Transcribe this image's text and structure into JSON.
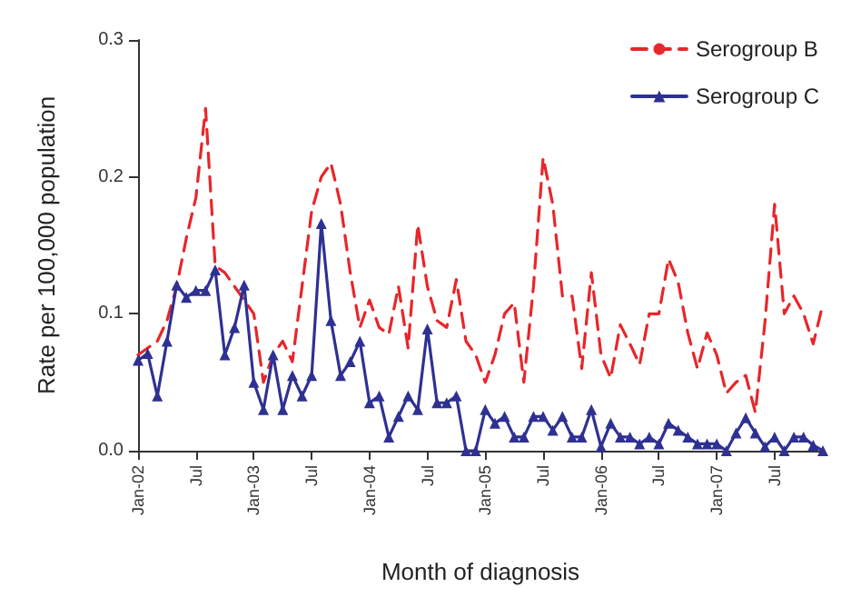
{
  "chart_data": {
    "type": "line",
    "xlabel": "Month of diagnosis",
    "ylabel": "Rate per 100,000 population",
    "categories": [
      "Jan-02",
      null,
      null,
      null,
      null,
      null,
      "Jul",
      null,
      null,
      null,
      null,
      null,
      "Jan-03",
      null,
      null,
      null,
      null,
      null,
      "Jul",
      null,
      null,
      null,
      null,
      null,
      "Jan-04",
      null,
      null,
      null,
      null,
      null,
      "Jul",
      null,
      null,
      null,
      null,
      null,
      "Jan-05",
      null,
      null,
      null,
      null,
      null,
      "Jul",
      null,
      null,
      null,
      null,
      null,
      "Jan-06",
      null,
      null,
      null,
      null,
      null,
      "Jul",
      null,
      null,
      null,
      null,
      null,
      "Jan-07",
      null,
      null,
      null,
      null,
      null,
      "Jul",
      null,
      null,
      null,
      null,
      null
    ],
    "series": [
      {
        "name": "Serogroup B",
        "color": "#e8262a",
        "marker": "none",
        "line_style": "dashed",
        "values": [
          0.07,
          0.075,
          0.08,
          0.095,
          0.12,
          0.155,
          0.185,
          0.25,
          0.135,
          0.13,
          0.12,
          0.11,
          0.1,
          0.05,
          0.07,
          0.08,
          0.065,
          0.12,
          0.175,
          0.2,
          0.21,
          0.18,
          0.13,
          0.09,
          0.11,
          0.09,
          0.085,
          0.12,
          0.075,
          0.165,
          0.12,
          0.095,
          0.09,
          0.125,
          0.08,
          0.07,
          0.05,
          0.07,
          0.1,
          0.108,
          0.05,
          0.12,
          0.214,
          0.18,
          0.113,
          0.113,
          0.06,
          0.13,
          0.07,
          0.053,
          0.092,
          0.078,
          0.063,
          0.1,
          0.1,
          0.14,
          0.123,
          0.086,
          0.06,
          0.086,
          0.07,
          0.042,
          0.05,
          0.055,
          0.028,
          0.094,
          0.18,
          0.1,
          0.113,
          0.1,
          0.078,
          0.107
        ]
      },
      {
        "name": "Serogroup C",
        "color": "#2e3192",
        "marker": "triangle",
        "line_style": "solid",
        "values": [
          0.066,
          0.071,
          0.04,
          0.08,
          0.121,
          0.112,
          0.117,
          0.117,
          0.132,
          0.07,
          0.09,
          0.121,
          0.05,
          0.03,
          0.07,
          0.03,
          0.055,
          0.04,
          0.055,
          0.166,
          0.095,
          0.055,
          0.065,
          0.08,
          0.035,
          0.04,
          0.01,
          0.025,
          0.04,
          0.03,
          0.089,
          0.035,
          0.035,
          0.04,
          0,
          0,
          0.03,
          0.02,
          0.025,
          0.01,
          0.01,
          0.025,
          0.025,
          0.015,
          0.025,
          0.01,
          0.01,
          0.03,
          0.003,
          0.02,
          0.01,
          0.01,
          0.005,
          0.01,
          0.005,
          0.02,
          0.015,
          0.01,
          0.005,
          0.005,
          0.005,
          0,
          0.013,
          0.024,
          0.013,
          0.003,
          0.01,
          0,
          0.01,
          0.01,
          0.004,
          0
        ]
      }
    ],
    "ylim": [
      0,
      0.3
    ],
    "yticks": [
      {
        "value": 0,
        "label": "0.0"
      },
      0.1,
      0.2,
      0.3
    ],
    "grid": false,
    "legend": "top right"
  }
}
